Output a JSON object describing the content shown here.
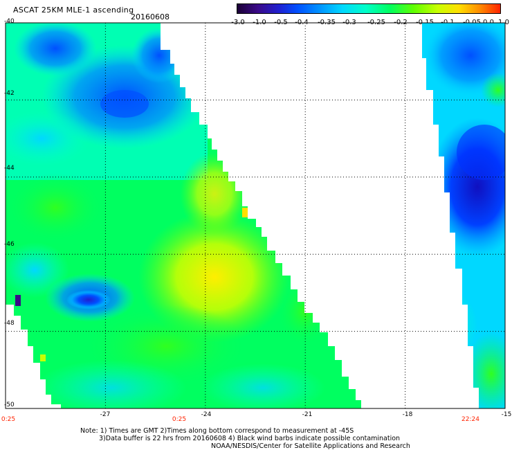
{
  "header": {
    "title": "ASCAT 25KM MLE-1 ascending",
    "date": "20160608"
  },
  "colorbar": {
    "labels": [
      "-3.0",
      "-1.0",
      "-0.5",
      "-0.4",
      "-0.35",
      "-0.3",
      "-0.25",
      "-0.2",
      "-0.15",
      "-0.1",
      "-0.05",
      "0.0",
      "1.0"
    ],
    "colors": [
      "#1a0033",
      "#3a0a88",
      "#2020d0",
      "#0050ff",
      "#0090ff",
      "#00d8ff",
      "#00ffc8",
      "#00ff60",
      "#60ff00",
      "#c8ff00",
      "#ffe000",
      "#ff8c00",
      "#ff2000"
    ]
  },
  "axes": {
    "y_labels": [
      "-40",
      "-42",
      "-44",
      "-46",
      "-48",
      "-50"
    ],
    "x_labels": [
      "-27",
      "-24",
      "-21",
      "-18",
      "-15"
    ],
    "time_labels": [
      "0:25",
      "0:25",
      "22:24"
    ],
    "x_range": [
      -30,
      -15
    ],
    "y_range": [
      -50,
      -40
    ]
  },
  "notes": {
    "line1": "Note: 1) Times are GMT 2)Times along bottom correspond to measurement at -45S",
    "line2": "3)Data buffer is 22 hrs from 20160608 4) Black wind barbs indicate possible contamination",
    "line3": "NOAA/NESDIS/Center for Satellite Applications and Research"
  }
}
